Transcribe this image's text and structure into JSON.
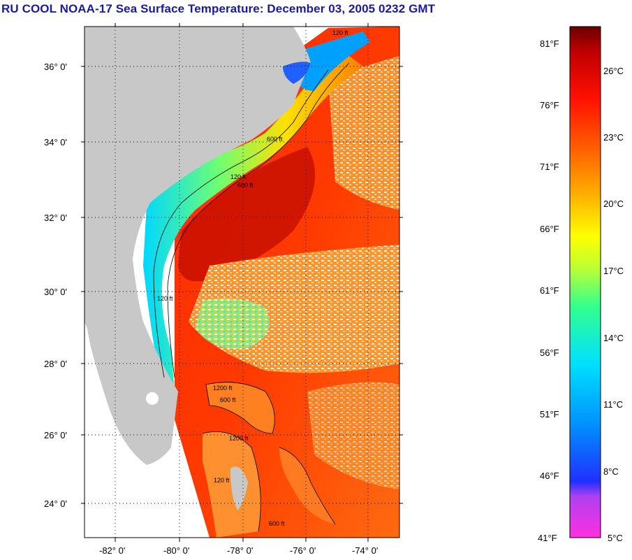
{
  "title": "RU COOL  NOAA-17  Sea Surface Temperature:  December 03, 2005 0232 GMT",
  "map": {
    "lat_labels": [
      "36° 0'",
      "34° 0'",
      "32° 0'",
      "30° 0'",
      "28° 0'",
      "26° 0'",
      "24° 0'"
    ],
    "lon_labels": [
      "-82° 0'",
      "-80° 0'",
      "-78° 0'",
      "-76° 0'",
      "-74° 0'"
    ],
    "lat_range": [
      23,
      37
    ],
    "lon_range": [
      -83,
      -73
    ],
    "grid": "dotted",
    "land_color": "#c8c8c8",
    "contour_labels": [
      "120 ft",
      "600 ft",
      "120 ft",
      "600 ft",
      "120 ft",
      "1200 ft",
      "600 ft",
      "1200 ft",
      "120 ft",
      "600 ft"
    ]
  },
  "colorbar": {
    "fahrenheit_labels": [
      "81°F",
      "76°F",
      "71°F",
      "66°F",
      "61°F",
      "56°F",
      "51°F",
      "46°F",
      "41°F"
    ],
    "celsius_labels": [
      "26°C",
      "23°C",
      "20°C",
      "17°C",
      "14°C",
      "11°C",
      "8°C",
      "5°C"
    ],
    "range_c": [
      5,
      28
    ],
    "colors": [
      "#ff30e0",
      "#b040f0",
      "#2030ff",
      "#0090ff",
      "#00e0ff",
      "#30ff90",
      "#c0ff30",
      "#ffff00",
      "#ffb000",
      "#ff6000",
      "#ff1000",
      "#c00000",
      "#6a0000"
    ]
  }
}
